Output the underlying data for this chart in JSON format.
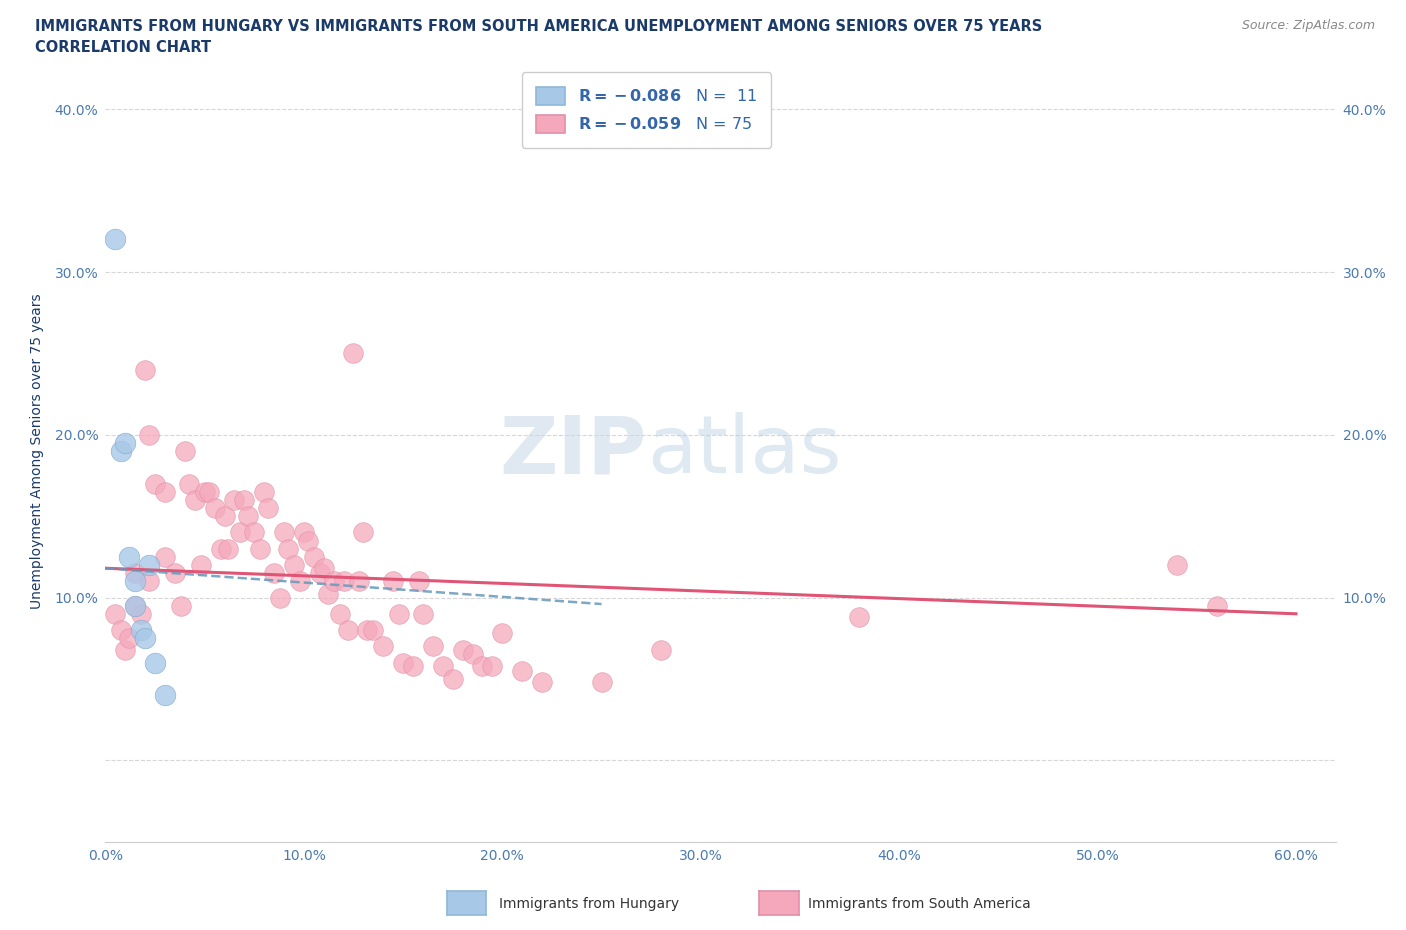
{
  "title_line1": "IMMIGRANTS FROM HUNGARY VS IMMIGRANTS FROM SOUTH AMERICA UNEMPLOYMENT AMONG SENIORS OVER 75 YEARS",
  "title_line2": "CORRELATION CHART",
  "source_text": "Source: ZipAtlas.com",
  "ylabel": "Unemployment Among Seniors over 75 years",
  "xlim": [
    0.0,
    0.62
  ],
  "ylim": [
    -0.05,
    0.43
  ],
  "plot_xlim": [
    0.0,
    0.62
  ],
  "plot_ylim": [
    0.0,
    0.43
  ],
  "xtick_values": [
    0.0,
    0.1,
    0.2,
    0.3,
    0.4,
    0.5,
    0.6
  ],
  "ytick_values": [
    0.0,
    0.1,
    0.2,
    0.3,
    0.4
  ],
  "watermark_zip": "ZIP",
  "watermark_atlas": "atlas",
  "hungary_color": "#a8c8e8",
  "sa_color": "#f5a8bc",
  "hungary_line_color": "#6699bb",
  "sa_line_color": "#e05575",
  "title_color": "#1a3a6a",
  "axis_label_color": "#1a3a6a",
  "tick_color": "#4a7ab0",
  "grid_color": "#cccccc",
  "background_color": "#ffffff",
  "hungary_scatter_x": [
    0.005,
    0.008,
    0.01,
    0.012,
    0.015,
    0.015,
    0.018,
    0.02,
    0.022,
    0.025,
    0.03
  ],
  "hungary_scatter_y": [
    0.32,
    0.19,
    0.195,
    0.125,
    0.11,
    0.095,
    0.08,
    0.075,
    0.12,
    0.06,
    0.04
  ],
  "sa_scatter_x": [
    0.005,
    0.008,
    0.01,
    0.012,
    0.015,
    0.015,
    0.018,
    0.02,
    0.022,
    0.022,
    0.025,
    0.03,
    0.03,
    0.035,
    0.038,
    0.04,
    0.042,
    0.045,
    0.048,
    0.05,
    0.052,
    0.055,
    0.058,
    0.06,
    0.062,
    0.065,
    0.068,
    0.07,
    0.072,
    0.075,
    0.078,
    0.08,
    0.082,
    0.085,
    0.088,
    0.09,
    0.092,
    0.095,
    0.098,
    0.1,
    0.102,
    0.105,
    0.108,
    0.11,
    0.112,
    0.115,
    0.118,
    0.12,
    0.122,
    0.125,
    0.128,
    0.13,
    0.132,
    0.135,
    0.14,
    0.145,
    0.148,
    0.15,
    0.155,
    0.158,
    0.16,
    0.165,
    0.17,
    0.175,
    0.18,
    0.185,
    0.19,
    0.195,
    0.2,
    0.21,
    0.22,
    0.25,
    0.28,
    0.38,
    0.54,
    0.56
  ],
  "sa_scatter_y": [
    0.09,
    0.08,
    0.068,
    0.075,
    0.115,
    0.095,
    0.09,
    0.24,
    0.2,
    0.11,
    0.17,
    0.165,
    0.125,
    0.115,
    0.095,
    0.19,
    0.17,
    0.16,
    0.12,
    0.165,
    0.165,
    0.155,
    0.13,
    0.15,
    0.13,
    0.16,
    0.14,
    0.16,
    0.15,
    0.14,
    0.13,
    0.165,
    0.155,
    0.115,
    0.1,
    0.14,
    0.13,
    0.12,
    0.11,
    0.14,
    0.135,
    0.125,
    0.115,
    0.118,
    0.102,
    0.11,
    0.09,
    0.11,
    0.08,
    0.25,
    0.11,
    0.14,
    0.08,
    0.08,
    0.07,
    0.11,
    0.09,
    0.06,
    0.058,
    0.11,
    0.09,
    0.07,
    0.058,
    0.05,
    0.068,
    0.065,
    0.058,
    0.058,
    0.078,
    0.055,
    0.048,
    0.048,
    0.068,
    0.088,
    0.12,
    0.095
  ],
  "hungary_line_x0": 0.0,
  "hungary_line_x1": 0.25,
  "hungary_line_y0": 0.118,
  "hungary_line_y1": 0.096,
  "sa_line_x0": 0.0,
  "sa_line_x1": 0.6,
  "sa_line_y0": 0.118,
  "sa_line_y1": 0.09
}
